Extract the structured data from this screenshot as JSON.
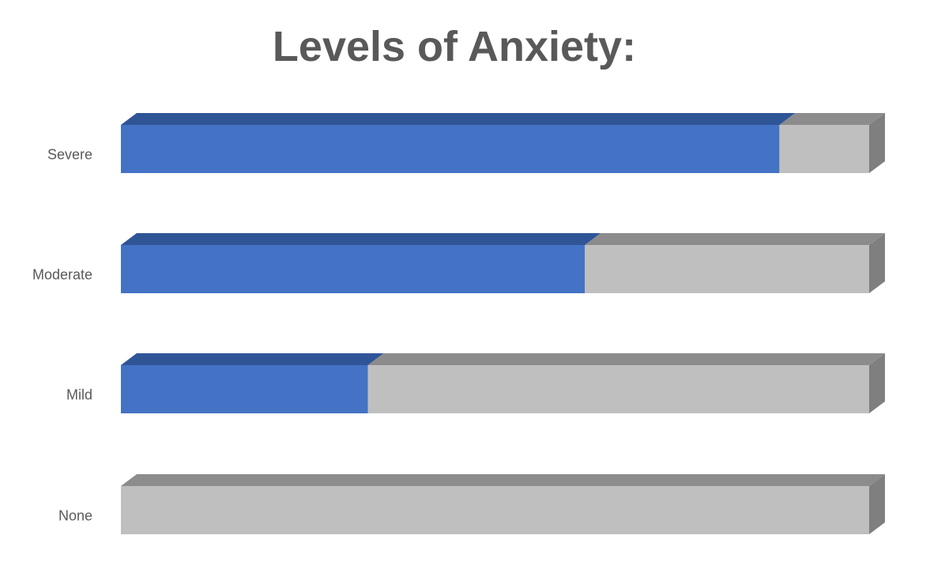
{
  "chart_data": {
    "type": "bar",
    "orientation": "horizontal",
    "style": "3d-stacked-100",
    "title": "Levels of Anxiety:",
    "categories": [
      "Severe",
      "Moderate",
      "Mild",
      "None"
    ],
    "series": [
      {
        "values": [
          0.88,
          0.62,
          0.33,
          0.0
        ]
      },
      {
        "values": [
          0.12,
          0.38,
          0.67,
          1.0
        ]
      }
    ],
    "xlim": [
      0,
      1
    ],
    "grid": false,
    "colors": {
      "fill": "#4472c4",
      "fill_top": "#2f5597",
      "rest": "#bfbfbf",
      "rest_top": "#8c8c8c",
      "rest_side": "#7f7f7f"
    }
  }
}
